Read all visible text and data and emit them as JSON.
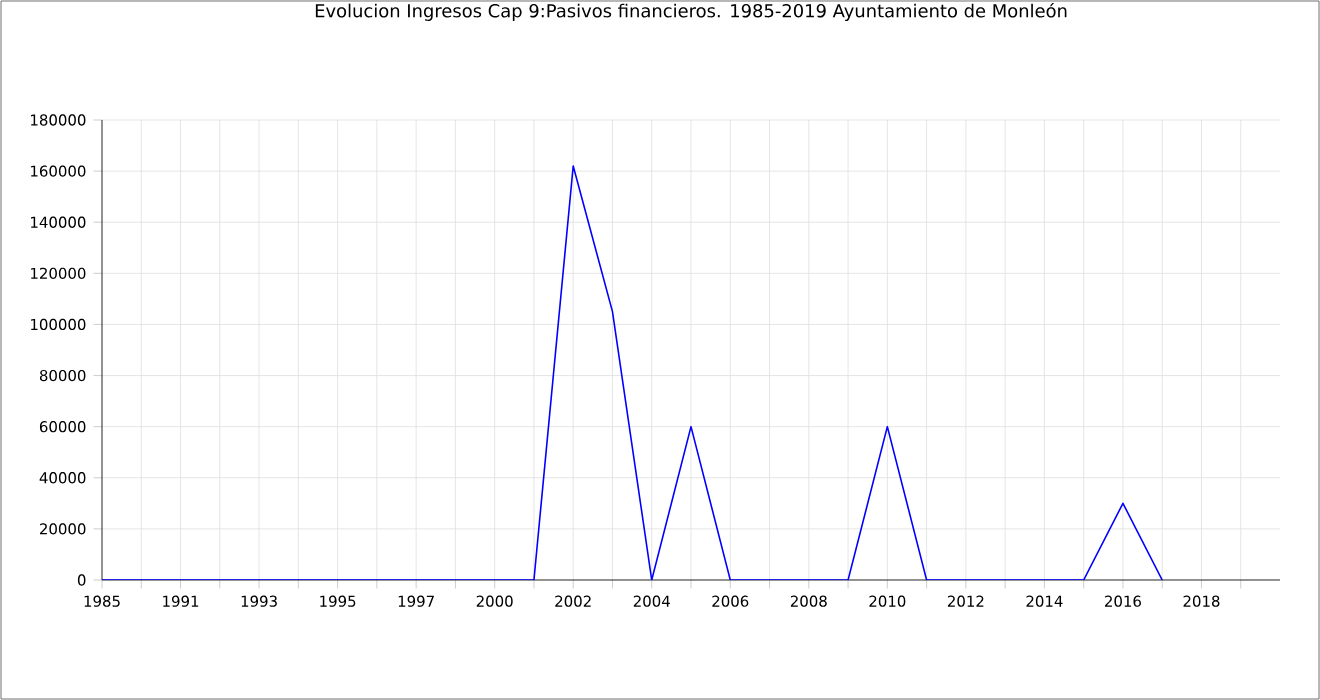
{
  "chart_data": {
    "type": "line",
    "title": "Evolucion Ingresos Cap 9:Pasivos financieros. 1985-2019 Ayuntamiento de Monleón",
    "categories": [
      "1985",
      null,
      "1991",
      null,
      "1993",
      null,
      "1995",
      null,
      "1997",
      null,
      "2000",
      null,
      "2002",
      null,
      "2004",
      null,
      "2006",
      null,
      "2008",
      null,
      "2010",
      null,
      "2012",
      null,
      "2014",
      null,
      "2016",
      null,
      "2018",
      null
    ],
    "series": [
      {
        "color": "#0000ff",
        "values": [
          0,
          0,
          0,
          0,
          0,
          0,
          0,
          0,
          0,
          0,
          0,
          0,
          162000,
          105000,
          0,
          60000,
          0,
          0,
          0,
          0,
          60000,
          0,
          0,
          0,
          0,
          0,
          30000,
          0,
          null,
          null
        ]
      }
    ],
    "ylim": [
      0,
      180000
    ],
    "yticks": [
      0,
      20000,
      40000,
      60000,
      80000,
      100000,
      120000,
      140000,
      160000,
      180000
    ],
    "grid": true,
    "legend": false,
    "marker": "none",
    "line_style": "solid"
  }
}
